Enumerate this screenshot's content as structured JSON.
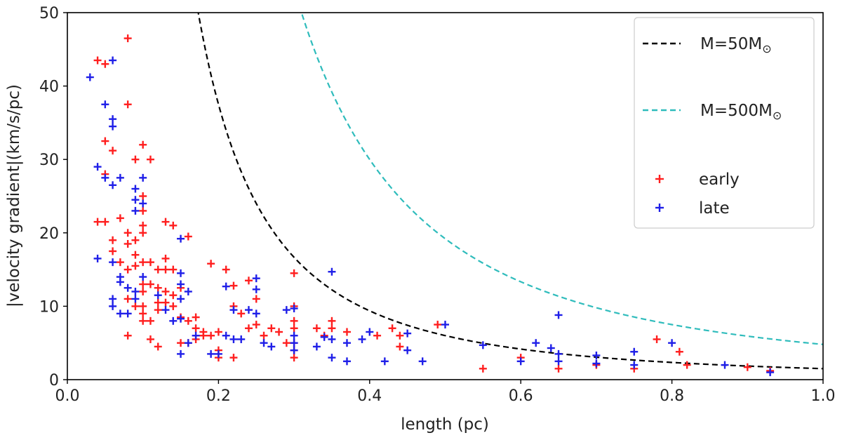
{
  "chart_data": {
    "type": "scatter",
    "xlabel": "length (pc)",
    "ylabel": "|velocity gradient|(km/s/pc)",
    "xlim": [
      0.0,
      1.0
    ],
    "ylim": [
      0,
      50
    ],
    "xticks": [
      "0.0",
      "0.2",
      "0.4",
      "0.6",
      "0.8",
      "1.0"
    ],
    "yticks": [
      "0",
      "10",
      "20",
      "30",
      "40",
      "50"
    ],
    "grid": false,
    "legend_position": "top-right",
    "curves": [
      {
        "name": "M=50M",
        "name_suffix": "⊙",
        "color": "#000000",
        "style": "dashed",
        "coefficient": 1.5
      },
      {
        "name": "M=500M",
        "name_suffix": "⊙",
        "color": "#2fbcbc",
        "style": "dashed",
        "coefficient": 4.8
      }
    ],
    "series": [
      {
        "name": "early",
        "color": "#ff1f1f",
        "marker": "+",
        "points": [
          [
            0.04,
            43.5
          ],
          [
            0.05,
            43
          ],
          [
            0.08,
            46.5
          ],
          [
            0.05,
            32.5
          ],
          [
            0.06,
            31.2
          ],
          [
            0.08,
            37.5
          ],
          [
            0.1,
            32
          ],
          [
            0.11,
            30
          ],
          [
            0.05,
            28
          ],
          [
            0.09,
            30
          ],
          [
            0.04,
            21.5
          ],
          [
            0.05,
            21.5
          ],
          [
            0.06,
            19
          ],
          [
            0.06,
            17.5
          ],
          [
            0.07,
            22
          ],
          [
            0.08,
            20
          ],
          [
            0.08,
            18.5
          ],
          [
            0.09,
            19
          ],
          [
            0.09,
            17
          ],
          [
            0.1,
            25
          ],
          [
            0.1,
            23
          ],
          [
            0.1,
            21
          ],
          [
            0.1,
            20
          ],
          [
            0.13,
            21.5
          ],
          [
            0.14,
            21
          ],
          [
            0.16,
            19.5
          ],
          [
            0.07,
            16
          ],
          [
            0.08,
            15
          ],
          [
            0.09,
            15.5
          ],
          [
            0.1,
            16
          ],
          [
            0.11,
            16
          ],
          [
            0.12,
            15
          ],
          [
            0.13,
            16.5
          ],
          [
            0.13,
            15
          ],
          [
            0.14,
            15
          ],
          [
            0.1,
            13
          ],
          [
            0.1,
            12
          ],
          [
            0.11,
            13
          ],
          [
            0.12,
            12.5
          ],
          [
            0.13,
            12
          ],
          [
            0.14,
            11.5
          ],
          [
            0.15,
            12.5
          ],
          [
            0.08,
            11
          ],
          [
            0.09,
            10
          ],
          [
            0.1,
            10
          ],
          [
            0.1,
            9
          ],
          [
            0.1,
            8
          ],
          [
            0.11,
            8
          ],
          [
            0.12,
            9.5
          ],
          [
            0.12,
            10.5
          ],
          [
            0.13,
            10.5
          ],
          [
            0.14,
            10
          ],
          [
            0.15,
            8.5
          ],
          [
            0.16,
            8
          ],
          [
            0.17,
            8.5
          ],
          [
            0.17,
            7
          ],
          [
            0.18,
            6.5
          ],
          [
            0.19,
            6
          ],
          [
            0.2,
            6.5
          ],
          [
            0.15,
            5
          ],
          [
            0.16,
            5
          ],
          [
            0.17,
            5.5
          ],
          [
            0.18,
            6
          ],
          [
            0.11,
            5.5
          ],
          [
            0.12,
            4.5
          ],
          [
            0.08,
            6
          ],
          [
            0.19,
            15.8
          ],
          [
            0.21,
            15
          ],
          [
            0.22,
            12.8
          ],
          [
            0.24,
            13.5
          ],
          [
            0.25,
            11
          ],
          [
            0.23,
            9
          ],
          [
            0.22,
            10
          ],
          [
            0.24,
            7
          ],
          [
            0.25,
            7.5
          ],
          [
            0.26,
            6
          ],
          [
            0.27,
            7
          ],
          [
            0.28,
            6.5
          ],
          [
            0.29,
            5
          ],
          [
            0.2,
            4
          ],
          [
            0.2,
            3
          ],
          [
            0.22,
            3
          ],
          [
            0.3,
            14.5
          ],
          [
            0.3,
            10
          ],
          [
            0.3,
            8
          ],
          [
            0.3,
            7
          ],
          [
            0.3,
            5
          ],
          [
            0.3,
            4
          ],
          [
            0.3,
            3
          ],
          [
            0.33,
            7
          ],
          [
            0.34,
            6
          ],
          [
            0.35,
            8
          ],
          [
            0.35,
            7
          ],
          [
            0.37,
            6.5
          ],
          [
            0.41,
            6
          ],
          [
            0.43,
            7
          ],
          [
            0.44,
            6
          ],
          [
            0.44,
            4.5
          ],
          [
            0.49,
            7.5
          ],
          [
            0.55,
            1.5
          ],
          [
            0.6,
            3
          ],
          [
            0.65,
            1.5
          ],
          [
            0.7,
            2
          ],
          [
            0.75,
            1.5
          ],
          [
            0.78,
            5.5
          ],
          [
            0.81,
            3.8
          ],
          [
            0.82,
            2
          ],
          [
            0.9,
            1.7
          ],
          [
            0.93,
            1.2
          ]
        ]
      },
      {
        "name": "late",
        "color": "#1f1fe8",
        "marker": "+",
        "points": [
          [
            0.03,
            41.2
          ],
          [
            0.06,
            43.5
          ],
          [
            0.05,
            37.5
          ],
          [
            0.06,
            35.5
          ],
          [
            0.06,
            34.5
          ],
          [
            0.04,
            29
          ],
          [
            0.05,
            27.5
          ],
          [
            0.06,
            26.5
          ],
          [
            0.07,
            27.5
          ],
          [
            0.1,
            27.5
          ],
          [
            0.09,
            26
          ],
          [
            0.09,
            24.5
          ],
          [
            0.09,
            23
          ],
          [
            0.1,
            24
          ],
          [
            0.04,
            16.5
          ],
          [
            0.06,
            16
          ],
          [
            0.07,
            14
          ],
          [
            0.08,
            12.5
          ],
          [
            0.07,
            13.3
          ],
          [
            0.06,
            11
          ],
          [
            0.06,
            10
          ],
          [
            0.07,
            9
          ],
          [
            0.08,
            9
          ],
          [
            0.09,
            12
          ],
          [
            0.09,
            11
          ],
          [
            0.1,
            14
          ],
          [
            0.12,
            11.5
          ],
          [
            0.13,
            9.5
          ],
          [
            0.14,
            8
          ],
          [
            0.15,
            19.2
          ],
          [
            0.15,
            14.5
          ],
          [
            0.15,
            13
          ],
          [
            0.15,
            11
          ],
          [
            0.16,
            12
          ],
          [
            0.15,
            8.3
          ],
          [
            0.16,
            5
          ],
          [
            0.15,
            3.5
          ],
          [
            0.17,
            6
          ],
          [
            0.19,
            3.5
          ],
          [
            0.2,
            3.5
          ],
          [
            0.21,
            12.7
          ],
          [
            0.22,
            9.5
          ],
          [
            0.21,
            6
          ],
          [
            0.22,
            5.5
          ],
          [
            0.23,
            5.5
          ],
          [
            0.24,
            9.5
          ],
          [
            0.25,
            13.8
          ],
          [
            0.25,
            12.3
          ],
          [
            0.25,
            9
          ],
          [
            0.26,
            5
          ],
          [
            0.27,
            4.5
          ],
          [
            0.29,
            9.5
          ],
          [
            0.3,
            9.7
          ],
          [
            0.3,
            6
          ],
          [
            0.3,
            5
          ],
          [
            0.3,
            4
          ],
          [
            0.34,
            5.8
          ],
          [
            0.33,
            4.5
          ],
          [
            0.35,
            14.7
          ],
          [
            0.35,
            5.5
          ],
          [
            0.35,
            3
          ],
          [
            0.37,
            5
          ],
          [
            0.37,
            2.5
          ],
          [
            0.39,
            5.5
          ],
          [
            0.4,
            6.5
          ],
          [
            0.42,
            2.5
          ],
          [
            0.45,
            6.3
          ],
          [
            0.45,
            4
          ],
          [
            0.47,
            2.5
          ],
          [
            0.5,
            7.5
          ],
          [
            0.55,
            4.7
          ],
          [
            0.6,
            2.5
          ],
          [
            0.62,
            5
          ],
          [
            0.64,
            4.3
          ],
          [
            0.65,
            8.8
          ],
          [
            0.65,
            3.5
          ],
          [
            0.65,
            2.5
          ],
          [
            0.7,
            3.3
          ],
          [
            0.7,
            2.2
          ],
          [
            0.75,
            3.8
          ],
          [
            0.75,
            2
          ],
          [
            0.8,
            5
          ],
          [
            0.87,
            2
          ],
          [
            0.93,
            1
          ]
        ]
      }
    ]
  }
}
